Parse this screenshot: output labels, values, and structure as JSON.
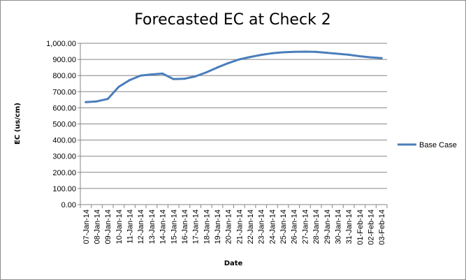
{
  "chart_data": {
    "type": "line",
    "title": "Forecasted EC at Check 2",
    "xlabel": "Date",
    "ylabel": "EC (us/cm)",
    "ylim": [
      0,
      1000
    ],
    "yticks": [
      "0.00",
      "100.00",
      "200.00",
      "300.00",
      "400.00",
      "500.00",
      "600.00",
      "700.00",
      "800.00",
      "900.00",
      "1,000.00"
    ],
    "categories": [
      "07-Jan-14",
      "08-Jan-14",
      "09-Jan-14",
      "10-Jan-14",
      "11-Jan-14",
      "12-Jan-14",
      "13-Jan-14",
      "14-Jan-14",
      "15-Jan-14",
      "16-Jan-14",
      "17-Jan-14",
      "18-Jan-14",
      "19-Jan-14",
      "20-Jan-14",
      "21-Jan-14",
      "22-Jan-14",
      "23-Jan-14",
      "24-Jan-14",
      "25-Jan-14",
      "26-Jan-14",
      "27-Jan-14",
      "28-Jan-14",
      "29-Jan-14",
      "30-Jan-14",
      "31-Jan-14",
      "01-Feb-14",
      "02-Feb-14",
      "03-Feb-14"
    ],
    "series": [
      {
        "name": "Base Case",
        "color": "#4a7ebb",
        "values": [
          635,
          640,
          655,
          730,
          772,
          800,
          807,
          812,
          778,
          780,
          795,
          820,
          850,
          877,
          900,
          915,
          928,
          938,
          944,
          947,
          948,
          947,
          941,
          935,
          929,
          920,
          913,
          908
        ]
      }
    ],
    "grid": "horizontal",
    "legend_position": "right"
  }
}
